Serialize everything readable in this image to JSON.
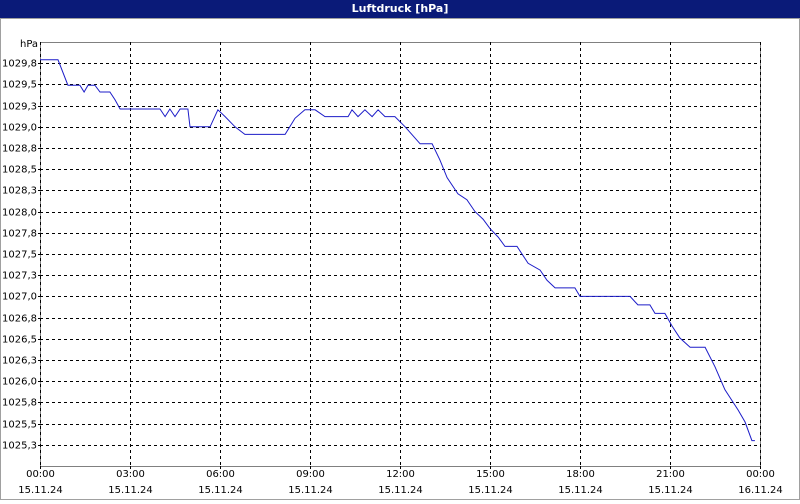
{
  "chart_data": {
    "type": "line",
    "title": "Luftdruck [hPa]",
    "y_unit": "hPa",
    "grid": true,
    "color": "#1c1cc8",
    "xlim": [
      0,
      24
    ],
    "ylim": [
      1025.0,
      1030.0
    ],
    "xticks": [
      {
        "value": 0,
        "label": "00:00",
        "date": "15.11.24"
      },
      {
        "value": 3,
        "label": "03:00",
        "date": "15.11.24"
      },
      {
        "value": 6,
        "label": "06:00",
        "date": "15.11.24"
      },
      {
        "value": 9,
        "label": "09:00",
        "date": "15.11.24"
      },
      {
        "value": 12,
        "label": "12:00",
        "date": "15.11.24"
      },
      {
        "value": 15,
        "label": "15:00",
        "date": "15.11.24"
      },
      {
        "value": 18,
        "label": "18:00",
        "date": "15.11.24"
      },
      {
        "value": 21,
        "label": "21:00",
        "date": "15.11.24"
      },
      {
        "value": 24,
        "label": "00:00",
        "date": "16.11.24"
      }
    ],
    "yticks": [
      {
        "value": 1025.25,
        "label": "1025,3"
      },
      {
        "value": 1025.5,
        "label": "1025,5"
      },
      {
        "value": 1025.75,
        "label": "1025,8"
      },
      {
        "value": 1026.0,
        "label": "1026,0"
      },
      {
        "value": 1026.25,
        "label": "1026,3"
      },
      {
        "value": 1026.5,
        "label": "1026,5"
      },
      {
        "value": 1026.75,
        "label": "1026,8"
      },
      {
        "value": 1027.0,
        "label": "1027,0"
      },
      {
        "value": 1027.25,
        "label": "1027,3"
      },
      {
        "value": 1027.5,
        "label": "1027,5"
      },
      {
        "value": 1027.75,
        "label": "1027,8"
      },
      {
        "value": 1028.0,
        "label": "1028,0"
      },
      {
        "value": 1028.25,
        "label": "1028,3"
      },
      {
        "value": 1028.5,
        "label": "1028,5"
      },
      {
        "value": 1028.75,
        "label": "1028,8"
      },
      {
        "value": 1029.0,
        "label": "1029,0"
      },
      {
        "value": 1029.25,
        "label": "1029,3"
      },
      {
        "value": 1029.5,
        "label": "1029,5"
      },
      {
        "value": 1029.75,
        "label": "1029,8"
      }
    ],
    "x": [
      0,
      0.6,
      0.93,
      1.33,
      1.47,
      1.6,
      1.83,
      2.0,
      2.33,
      2.5,
      2.67,
      4.0,
      4.17,
      4.33,
      4.5,
      4.67,
      4.93,
      5.0,
      5.67,
      5.93,
      6.17,
      6.5,
      6.83,
      8.17,
      8.5,
      8.83,
      9.17,
      9.5,
      10.27,
      10.4,
      10.6,
      10.83,
      11.07,
      11.27,
      11.5,
      11.83,
      12.17,
      12.67,
      13.07,
      13.33,
      13.57,
      13.93,
      14.23,
      14.5,
      14.77,
      15.0,
      15.27,
      15.5,
      15.9,
      16.27,
      16.67,
      16.9,
      17.17,
      17.83,
      18.0,
      19.67,
      19.93,
      20.33,
      20.5,
      20.83,
      21.07,
      21.33,
      21.67,
      22.17,
      22.5,
      22.83,
      23.27,
      23.5,
      23.73,
      23.83
    ],
    "values": [
      1029.79,
      1029.79,
      1029.49,
      1029.49,
      1029.41,
      1029.49,
      1029.49,
      1029.41,
      1029.41,
      1029.32,
      1029.21,
      1029.21,
      1029.12,
      1029.21,
      1029.12,
      1029.21,
      1029.21,
      1029.0,
      1029.0,
      1029.2,
      1029.12,
      1029.0,
      1028.91,
      1028.91,
      1029.1,
      1029.2,
      1029.2,
      1029.12,
      1029.12,
      1029.2,
      1029.12,
      1029.2,
      1029.12,
      1029.2,
      1029.12,
      1029.12,
      1029.0,
      1028.8,
      1028.8,
      1028.61,
      1028.4,
      1028.21,
      1028.14,
      1028.0,
      1027.91,
      1027.8,
      1027.7,
      1027.59,
      1027.59,
      1027.39,
      1027.31,
      1027.19,
      1027.1,
      1027.1,
      1027.0,
      1027.0,
      1026.9,
      1026.9,
      1026.8,
      1026.8,
      1026.65,
      1026.51,
      1026.4,
      1026.4,
      1026.17,
      1025.9,
      1025.66,
      1025.52,
      1025.3,
      1025.3
    ]
  }
}
